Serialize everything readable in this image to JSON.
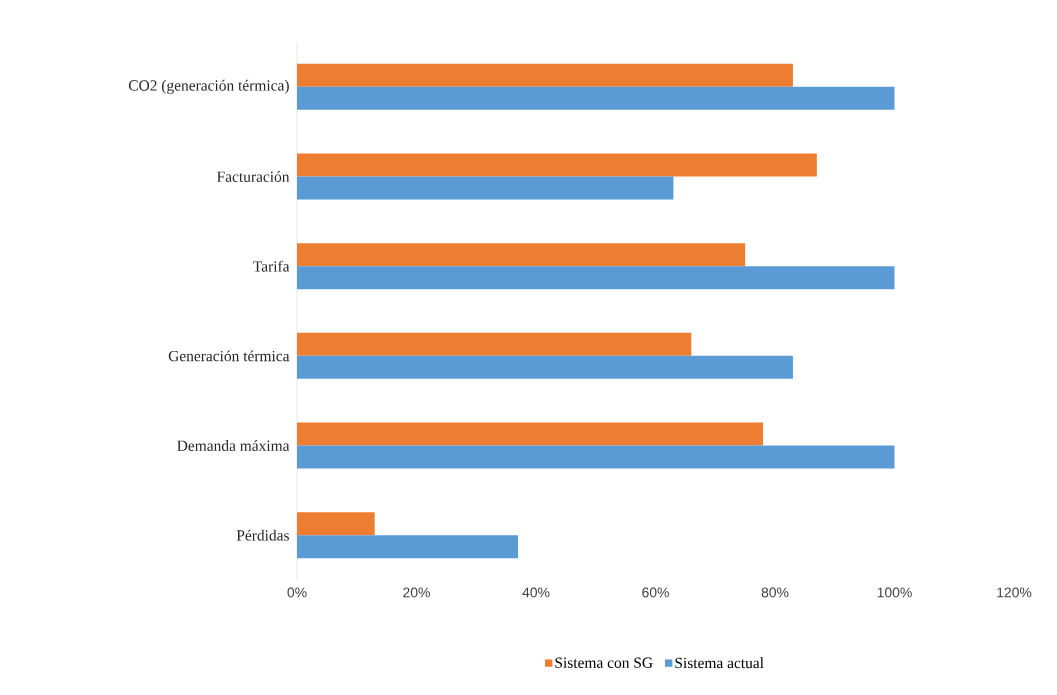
{
  "chart_data": {
    "type": "bar",
    "orientation": "horizontal",
    "categories": [
      "CO2 (generación térmica)",
      "Facturación",
      "Tarifa",
      "Generación térmica",
      "Demanda máxima",
      "Pérdidas"
    ],
    "series": [
      {
        "name": "Sistema con SG",
        "color": "#ed7d31",
        "values": [
          83,
          87,
          75,
          66,
          78,
          13
        ]
      },
      {
        "name": "Sistema actual",
        "color": "#5b9bd5",
        "values": [
          100,
          63,
          100,
          83,
          100,
          37
        ]
      }
    ],
    "xlim": [
      0,
      120
    ],
    "xticks": [
      {
        "value": 0,
        "label": "0%"
      },
      {
        "value": 20,
        "label": "20%"
      },
      {
        "value": 40,
        "label": "40%"
      },
      {
        "value": 60,
        "label": "60%"
      },
      {
        "value": 80,
        "label": "80%"
      },
      {
        "value": 100,
        "label": "100%"
      },
      {
        "value": 120,
        "label": "120%"
      }
    ],
    "legend": "bottom"
  }
}
